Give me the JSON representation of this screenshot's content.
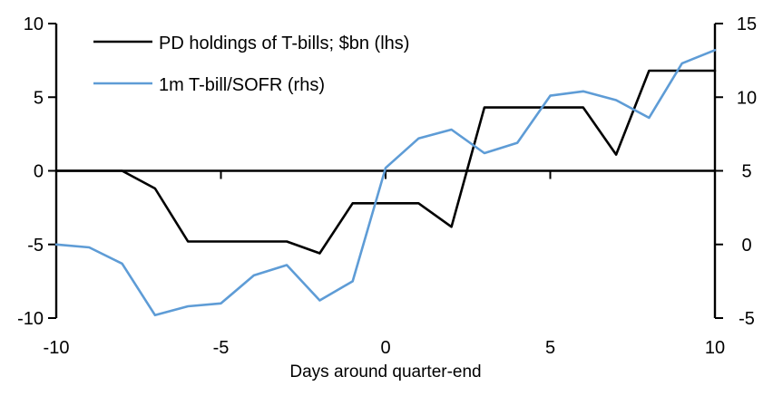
{
  "chart_data": {
    "type": "line",
    "title": "",
    "xlabel": "Days around quarter-end",
    "grid": false,
    "legend_position": "top-left-inside",
    "x": [
      -10,
      -9,
      -8,
      -7,
      -6,
      -5,
      -4,
      -3,
      -2,
      -1,
      0,
      1,
      2,
      3,
      4,
      5,
      6,
      7,
      8,
      9,
      10
    ],
    "series": [
      {
        "id": "pd-holdings",
        "name": "PD holdings of T-bills; $bn (lhs)",
        "axis": "left",
        "color": "#000000",
        "values": [
          0,
          0,
          0,
          -1.2,
          -4.8,
          -4.8,
          -4.8,
          -4.8,
          -5.6,
          -2.2,
          -2.2,
          -2.2,
          -3.8,
          4.3,
          4.3,
          4.3,
          4.3,
          1.1,
          6.8,
          6.8,
          6.8
        ]
      },
      {
        "id": "tbill-sofr",
        "name": "1m T-bill/SOFR (rhs)",
        "axis": "right",
        "color": "#5E9CD6",
        "values": [
          0.0,
          -0.2,
          -1.3,
          -4.8,
          -4.2,
          -4.0,
          -2.1,
          -1.4,
          -3.8,
          -2.5,
          5.2,
          7.2,
          7.8,
          6.2,
          6.9,
          10.1,
          10.4,
          9.8,
          8.6,
          12.3,
          13.2
        ]
      }
    ],
    "axes": {
      "left": {
        "range": [
          -10,
          10
        ],
        "ticks": [
          10,
          5,
          0,
          -5,
          -10
        ]
      },
      "right": {
        "range": [
          -5,
          15
        ],
        "ticks": [
          15,
          10,
          5,
          0,
          -5
        ]
      },
      "x": {
        "range": [
          -10,
          10
        ],
        "ticks": [
          -10,
          -5,
          0,
          5,
          10
        ],
        "inner_ticks": [
          -5,
          0,
          5
        ]
      }
    },
    "axis_color": "#000000"
  }
}
